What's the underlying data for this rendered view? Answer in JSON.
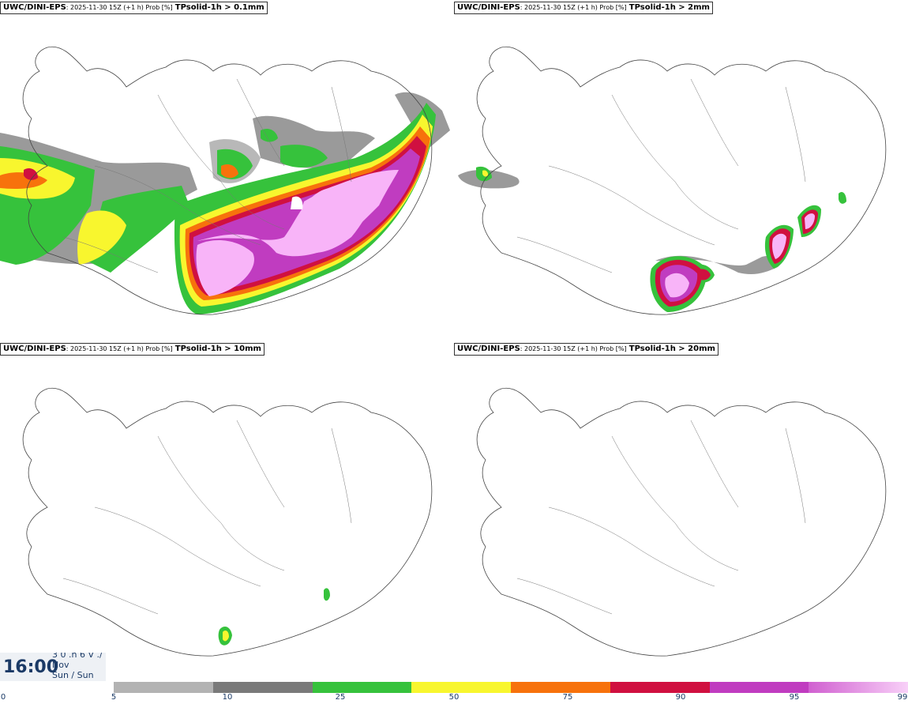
{
  "panels": [
    {
      "model": "UWC/DINI-EPS",
      "meta": ": 2025-11-30 15Z (+1 h) Prob [%]",
      "variable": "TPsolid-1h > 0.1mm"
    },
    {
      "model": "UWC/DINI-EPS",
      "meta": ": 2025-11-30 15Z (+1 h) Prob [%]",
      "variable": "TPsolid-1h > 2mm"
    },
    {
      "model": "UWC/DINI-EPS",
      "meta": ": 2025-11-30 15Z (+1 h) Prob [%]",
      "variable": "TPsolid-1h > 10mm"
    },
    {
      "model": "UWC/DINI-EPS",
      "meta": ": 2025-11-30 15Z (+1 h) Prob [%]",
      "variable": "TPsolid-1h > 20mm"
    }
  ],
  "valid_time": {
    "time": "16:00",
    "line1": "3 0 .h 6 V ./",
    "line2": "Nov",
    "line3": "Sun / Sun"
  },
  "legend": {
    "ticks": [
      "0",
      "5",
      "10",
      "25",
      "50",
      "75",
      "90",
      "95",
      "99"
    ],
    "colors": [
      "#b3b3b3",
      "#7a7a7a",
      "#36c23c",
      "#f8f62e",
      "#f7720c",
      "#d01040",
      "#c03cc0",
      "#f8b4f8"
    ]
  }
}
